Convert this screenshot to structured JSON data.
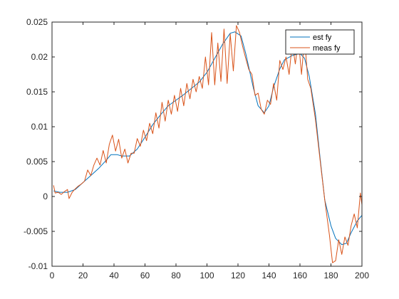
{
  "chart_data": {
    "type": "line",
    "title": "",
    "xlabel": "",
    "ylabel": "",
    "xlim": [
      0,
      200
    ],
    "ylim": [
      -0.01,
      0.025
    ],
    "x_ticks": [
      0,
      20,
      40,
      60,
      80,
      100,
      120,
      140,
      160,
      180,
      200
    ],
    "y_ticks": [
      -0.01,
      -0.005,
      0,
      0.005,
      0.01,
      0.015,
      0.02,
      0.025
    ],
    "x_tick_labels": [
      "0",
      "20",
      "40",
      "60",
      "80",
      "100",
      "120",
      "140",
      "160",
      "180",
      "200"
    ],
    "y_tick_labels": [
      "-0.01",
      "-0.005",
      "0",
      "0.005",
      "0.01",
      "0.015",
      "0.02",
      "0.025"
    ],
    "grid": false,
    "legend": {
      "location": "top-right",
      "boxed": true
    },
    "series": [
      {
        "name": "est fy",
        "color": "#0072BD",
        "x": [
          1,
          5,
          10,
          15,
          20,
          25,
          30,
          35,
          38,
          42,
          45,
          50,
          55,
          60,
          65,
          70,
          75,
          80,
          85,
          90,
          95,
          100,
          105,
          110,
          115,
          118,
          122,
          125,
          130,
          133,
          137,
          140,
          143,
          147,
          150,
          155,
          160,
          163,
          166,
          170,
          173,
          176,
          180,
          183,
          187,
          190,
          193,
          197,
          200
        ],
        "y": [
          0.0008,
          0.0006,
          0.0006,
          0.001,
          0.002,
          0.003,
          0.004,
          0.0052,
          0.006,
          0.006,
          0.0058,
          0.0058,
          0.0068,
          0.0085,
          0.0103,
          0.0117,
          0.013,
          0.0138,
          0.0146,
          0.0155,
          0.0164,
          0.0178,
          0.0198,
          0.0218,
          0.0234,
          0.0236,
          0.023,
          0.0205,
          0.0155,
          0.013,
          0.012,
          0.013,
          0.0157,
          0.0183,
          0.0196,
          0.0202,
          0.0205,
          0.0198,
          0.0172,
          0.0118,
          0.0055,
          -0.0005,
          -0.0042,
          -0.006,
          -0.0069,
          -0.0067,
          -0.0052,
          -0.0035,
          -0.0027
        ]
      },
      {
        "name": "meas fy",
        "color": "#D95319",
        "x": [
          1,
          2,
          4,
          6,
          8,
          10,
          11,
          13,
          15,
          17,
          19,
          21,
          23,
          25,
          27,
          29,
          31,
          33,
          35,
          37,
          39,
          41,
          43,
          45,
          47,
          49,
          51,
          53,
          55,
          57,
          59,
          61,
          63,
          65,
          67,
          69,
          71,
          73,
          75,
          77,
          79,
          81,
          83,
          85,
          87,
          89,
          91,
          93,
          95,
          97,
          99,
          101,
          103,
          105,
          107,
          109,
          111,
          113,
          115,
          117,
          119,
          121,
          123,
          125,
          127,
          129,
          131,
          133,
          135,
          137,
          139,
          141,
          143,
          145,
          147,
          149,
          151,
          153,
          155,
          157,
          159,
          161,
          163,
          165,
          167,
          170,
          173,
          176,
          179,
          181,
          183,
          185,
          187,
          189,
          191,
          193,
          195,
          197,
          199,
          200
        ],
        "y": [
          0.0016,
          0.0005,
          0.0006,
          0.0003,
          0.0007,
          0.001,
          -0.0003,
          0.0006,
          0.0011,
          0.0015,
          0.0018,
          0.0022,
          0.0038,
          0.003,
          0.0045,
          0.0055,
          0.0045,
          0.0066,
          0.0048,
          0.0075,
          0.0088,
          0.0065,
          0.0082,
          0.0055,
          0.0068,
          0.0048,
          0.0062,
          0.0062,
          0.0083,
          0.0072,
          0.0095,
          0.008,
          0.0105,
          0.009,
          0.012,
          0.0098,
          0.0135,
          0.0108,
          0.0138,
          0.0118,
          0.0145,
          0.0122,
          0.0155,
          0.013,
          0.0162,
          0.014,
          0.0168,
          0.015,
          0.0172,
          0.0155,
          0.02,
          0.016,
          0.0235,
          0.016,
          0.022,
          0.0165,
          0.024,
          0.0162,
          0.0233,
          0.018,
          0.0245,
          0.0235,
          0.0215,
          0.0198,
          0.0182,
          0.0175,
          0.0145,
          0.0148,
          0.0125,
          0.0118,
          0.0138,
          0.0132,
          0.0162,
          0.0138,
          0.0195,
          0.0182,
          0.02,
          0.0175,
          0.022,
          0.019,
          0.0225,
          0.0175,
          0.0228,
          0.0168,
          0.0155,
          0.011,
          0.0052,
          -0.0005,
          -0.0055,
          -0.0095,
          -0.0092,
          -0.0062,
          -0.0083,
          -0.0058,
          -0.007,
          -0.0042,
          -0.0025,
          -0.0045,
          0.0005,
          -0.0012
        ]
      }
    ]
  }
}
